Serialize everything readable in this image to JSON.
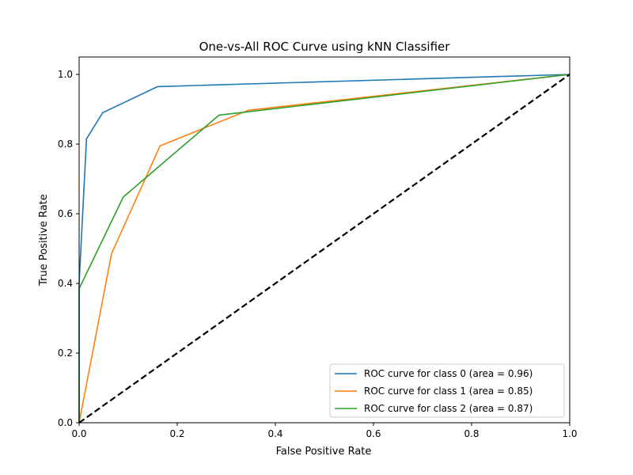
{
  "chart_data": {
    "type": "line",
    "title": "One-vs-All ROC Curve using kNN Classifier",
    "xlabel": "False Positive Rate",
    "ylabel": "True Positive Rate",
    "xlim": [
      0.0,
      1.0
    ],
    "ylim": [
      0.0,
      1.05
    ],
    "xticks": [
      "0.0",
      "0.2",
      "0.4",
      "0.6",
      "0.8",
      "1.0"
    ],
    "yticks": [
      "0.0",
      "0.2",
      "0.4",
      "0.6",
      "0.8",
      "1.0"
    ],
    "grid": false,
    "legend_position": "lower-right",
    "series": [
      {
        "name": "ROC curve for class 0 (area = 0.96)",
        "color": "#1f77b4",
        "x": [
          0.0,
          0.0,
          0.015,
          0.048,
          0.16,
          1.0
        ],
        "y": [
          0.0,
          0.4,
          0.815,
          0.89,
          0.965,
          1.0
        ]
      },
      {
        "name": "ROC curve for class 1 (area = 0.85)",
        "color": "#ff7f0e",
        "x": [
          0.0,
          0.066,
          0.165,
          0.345,
          1.0
        ],
        "y": [
          0.0,
          0.485,
          0.795,
          0.897,
          1.0
        ]
      },
      {
        "name": "ROC curve for class 2 (area = 0.87)",
        "color": "#2ca02c",
        "x": [
          0.0,
          0.0,
          0.09,
          0.285,
          1.0
        ],
        "y": [
          0.0,
          0.385,
          0.648,
          0.883,
          1.0
        ]
      }
    ],
    "reference_line": {
      "style": "dashed",
      "color": "#000000",
      "x": [
        0.0,
        1.0
      ],
      "y": [
        0.0,
        1.0
      ]
    }
  }
}
